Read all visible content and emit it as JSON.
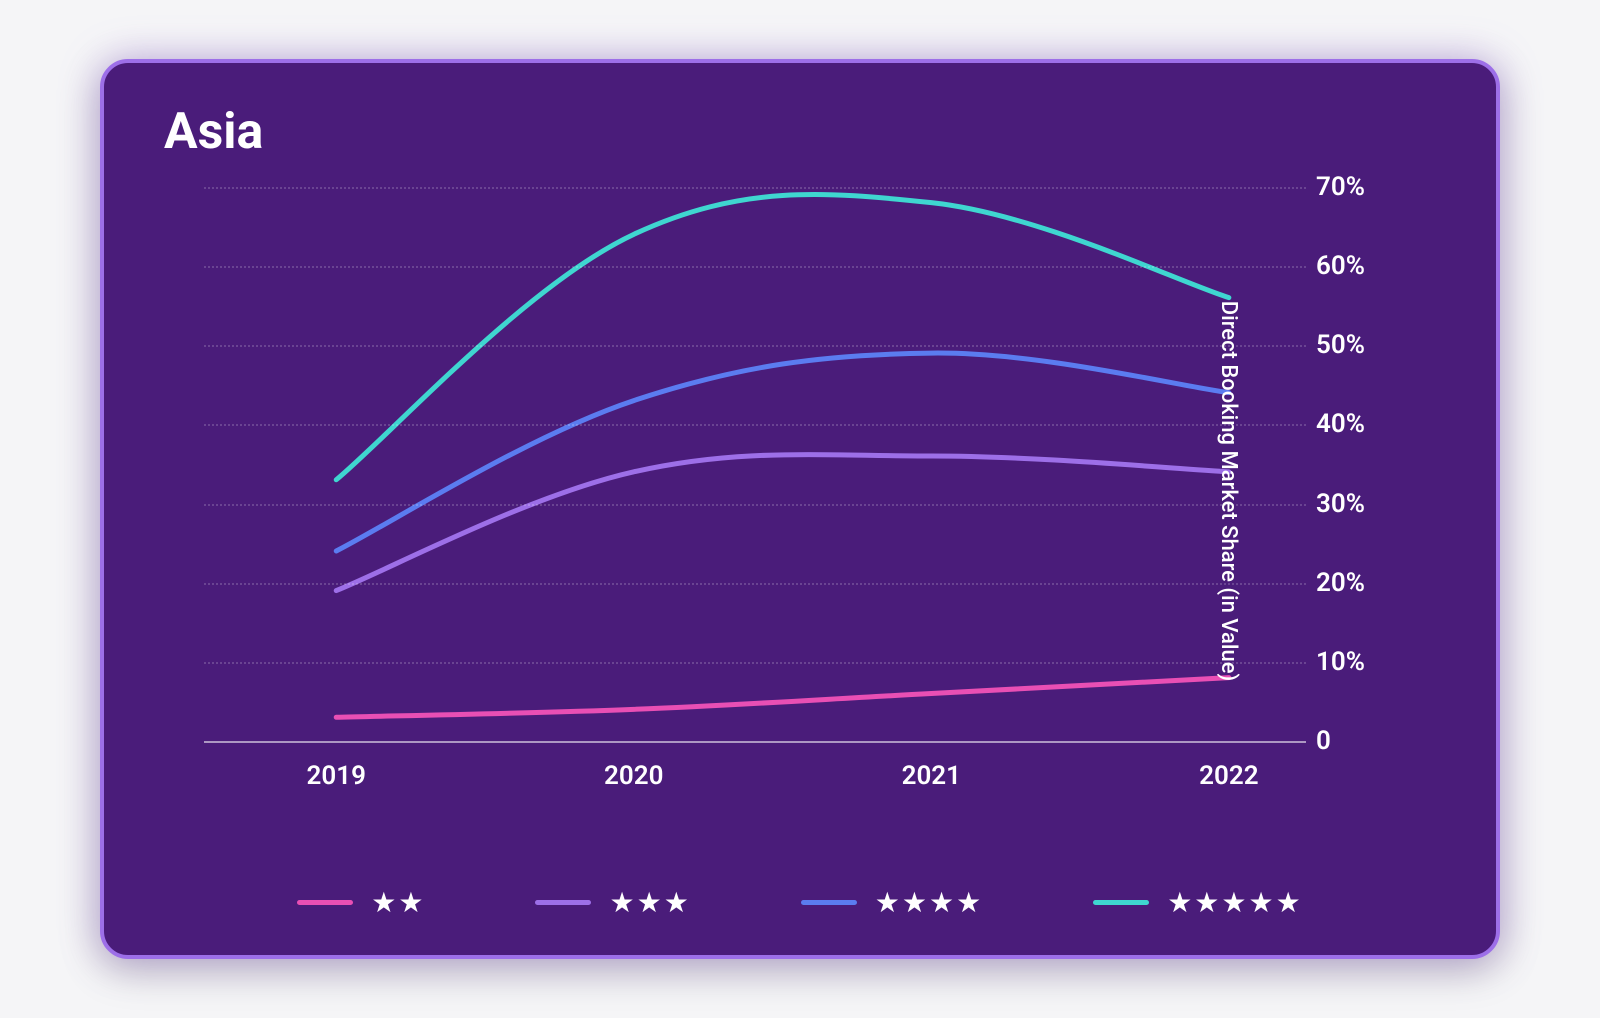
{
  "chart": {
    "type": "line",
    "title": "Asia",
    "title_fontsize": 50,
    "title_color": "#ffffff",
    "background_color": "#4a1c7a",
    "border_color": "#9d6fe8",
    "border_radius": 28,
    "glow_color": "rgba(157,111,232,0.4)",
    "grid_color": "rgba(255,255,255,0.18)",
    "baseline_color": "rgba(255,255,255,0.55)",
    "line_width": 5,
    "x": {
      "categories": [
        "2019",
        "2020",
        "2021",
        "2022"
      ],
      "positions_pct": [
        12,
        39,
        66,
        93
      ],
      "tick_fontsize": 26,
      "tick_color": "#ffffff"
    },
    "y": {
      "label": "Direct Booking Market Share (in Value)",
      "label_fontsize": 22,
      "label_color": "#ffffff",
      "lim": [
        0,
        72
      ],
      "ticks": [
        0,
        10,
        20,
        30,
        40,
        50,
        60,
        70
      ],
      "tick_labels": [
        "0",
        "10%",
        "20%",
        "30%",
        "40%",
        "50%",
        "60%",
        "70%"
      ],
      "tick_fontsize": 26,
      "tick_color": "#ffffff"
    },
    "series": [
      {
        "name": "2-star",
        "stars": 2,
        "color": "#e94fb4",
        "values": [
          3,
          4,
          6,
          8
        ]
      },
      {
        "name": "3-star",
        "stars": 3,
        "color": "#9d6fe8",
        "values": [
          19,
          34,
          36,
          34
        ]
      },
      {
        "name": "4-star",
        "stars": 4,
        "color": "#5b7cf0",
        "values": [
          24,
          43,
          49,
          44
        ]
      },
      {
        "name": "5-star",
        "stars": 5,
        "color": "#3fd6d0",
        "values": [
          33,
          64,
          68,
          56
        ]
      }
    ],
    "legend": {
      "position": "bottom",
      "swatch_width": 56,
      "swatch_height": 5,
      "star_glyph": "★",
      "star_color": "#ffffff",
      "star_fontsize": 28,
      "gap": 110
    }
  }
}
